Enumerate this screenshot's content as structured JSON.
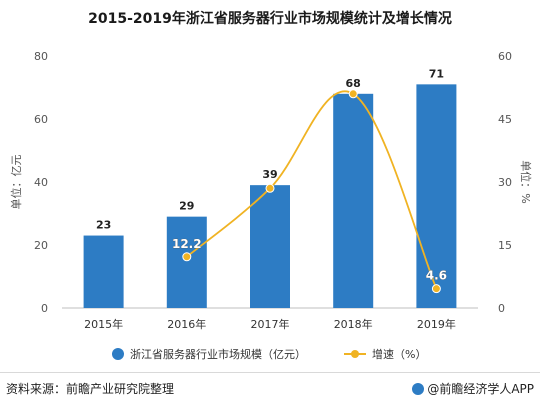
{
  "chart_data": {
    "type": "bar",
    "title": "2015-2019年浙江省服务器行业市场规模统计及增长情况",
    "categories": [
      "2015年",
      "2016年",
      "2017年",
      "2018年",
      "2019年"
    ],
    "series": [
      {
        "name": "浙江省服务器行业市场规模（亿元）",
        "type": "bar",
        "axis": "left",
        "values": [
          23,
          29,
          39,
          68,
          71
        ],
        "color": "#2d7cc4"
      },
      {
        "name": "增速（%）",
        "type": "line",
        "axis": "right",
        "values": [
          null,
          12.2,
          28.5,
          51,
          4.6
        ],
        "color": "#f0b323"
      }
    ],
    "bar_labels": [
      "23",
      "29",
      "39",
      "68",
      "71"
    ],
    "line_labels": [
      "",
      "12.2",
      "",
      "",
      "4.6"
    ],
    "ylabel_left": "单位：亿元",
    "ylabel_right": "单位：%",
    "ylim_left": [
      0,
      80
    ],
    "ylim_right": [
      0,
      60
    ],
    "yticks_left": [
      "0",
      "20",
      "40",
      "60",
      "80"
    ],
    "yticks_right": [
      "0",
      "15",
      "30",
      "45",
      "60"
    ],
    "grid": false,
    "legend_position": "bottom"
  },
  "footer": {
    "source": "资料来源：前瞻产业研究院整理",
    "brand": "@前瞻经济学人APP"
  }
}
